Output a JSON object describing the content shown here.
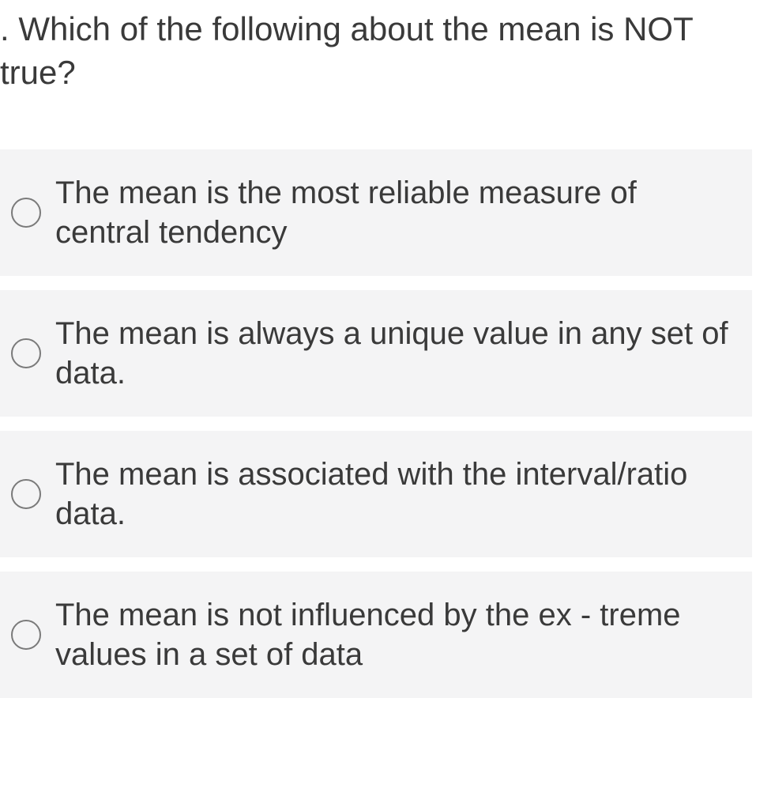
{
  "question": {
    "prefix": ". ",
    "text": "Which of the following about the mean is NOT true?"
  },
  "options": [
    {
      "label": "The mean is the most reliable measure of central tendency"
    },
    {
      "label": "The mean is always a unique value in any set of data."
    },
    {
      "label": "The mean is associated with the interval/ratio data."
    },
    {
      "label": "The mean is not influenced by the ex - treme values in a set of data"
    }
  ],
  "colors": {
    "text": "#3a3a3a",
    "option_bg": "#f4f4f5",
    "radio_border": "#7a7a7a",
    "page_bg": "#ffffff"
  },
  "typography": {
    "question_fontsize": 42,
    "option_fontsize": 40,
    "font_family": "Arial"
  }
}
